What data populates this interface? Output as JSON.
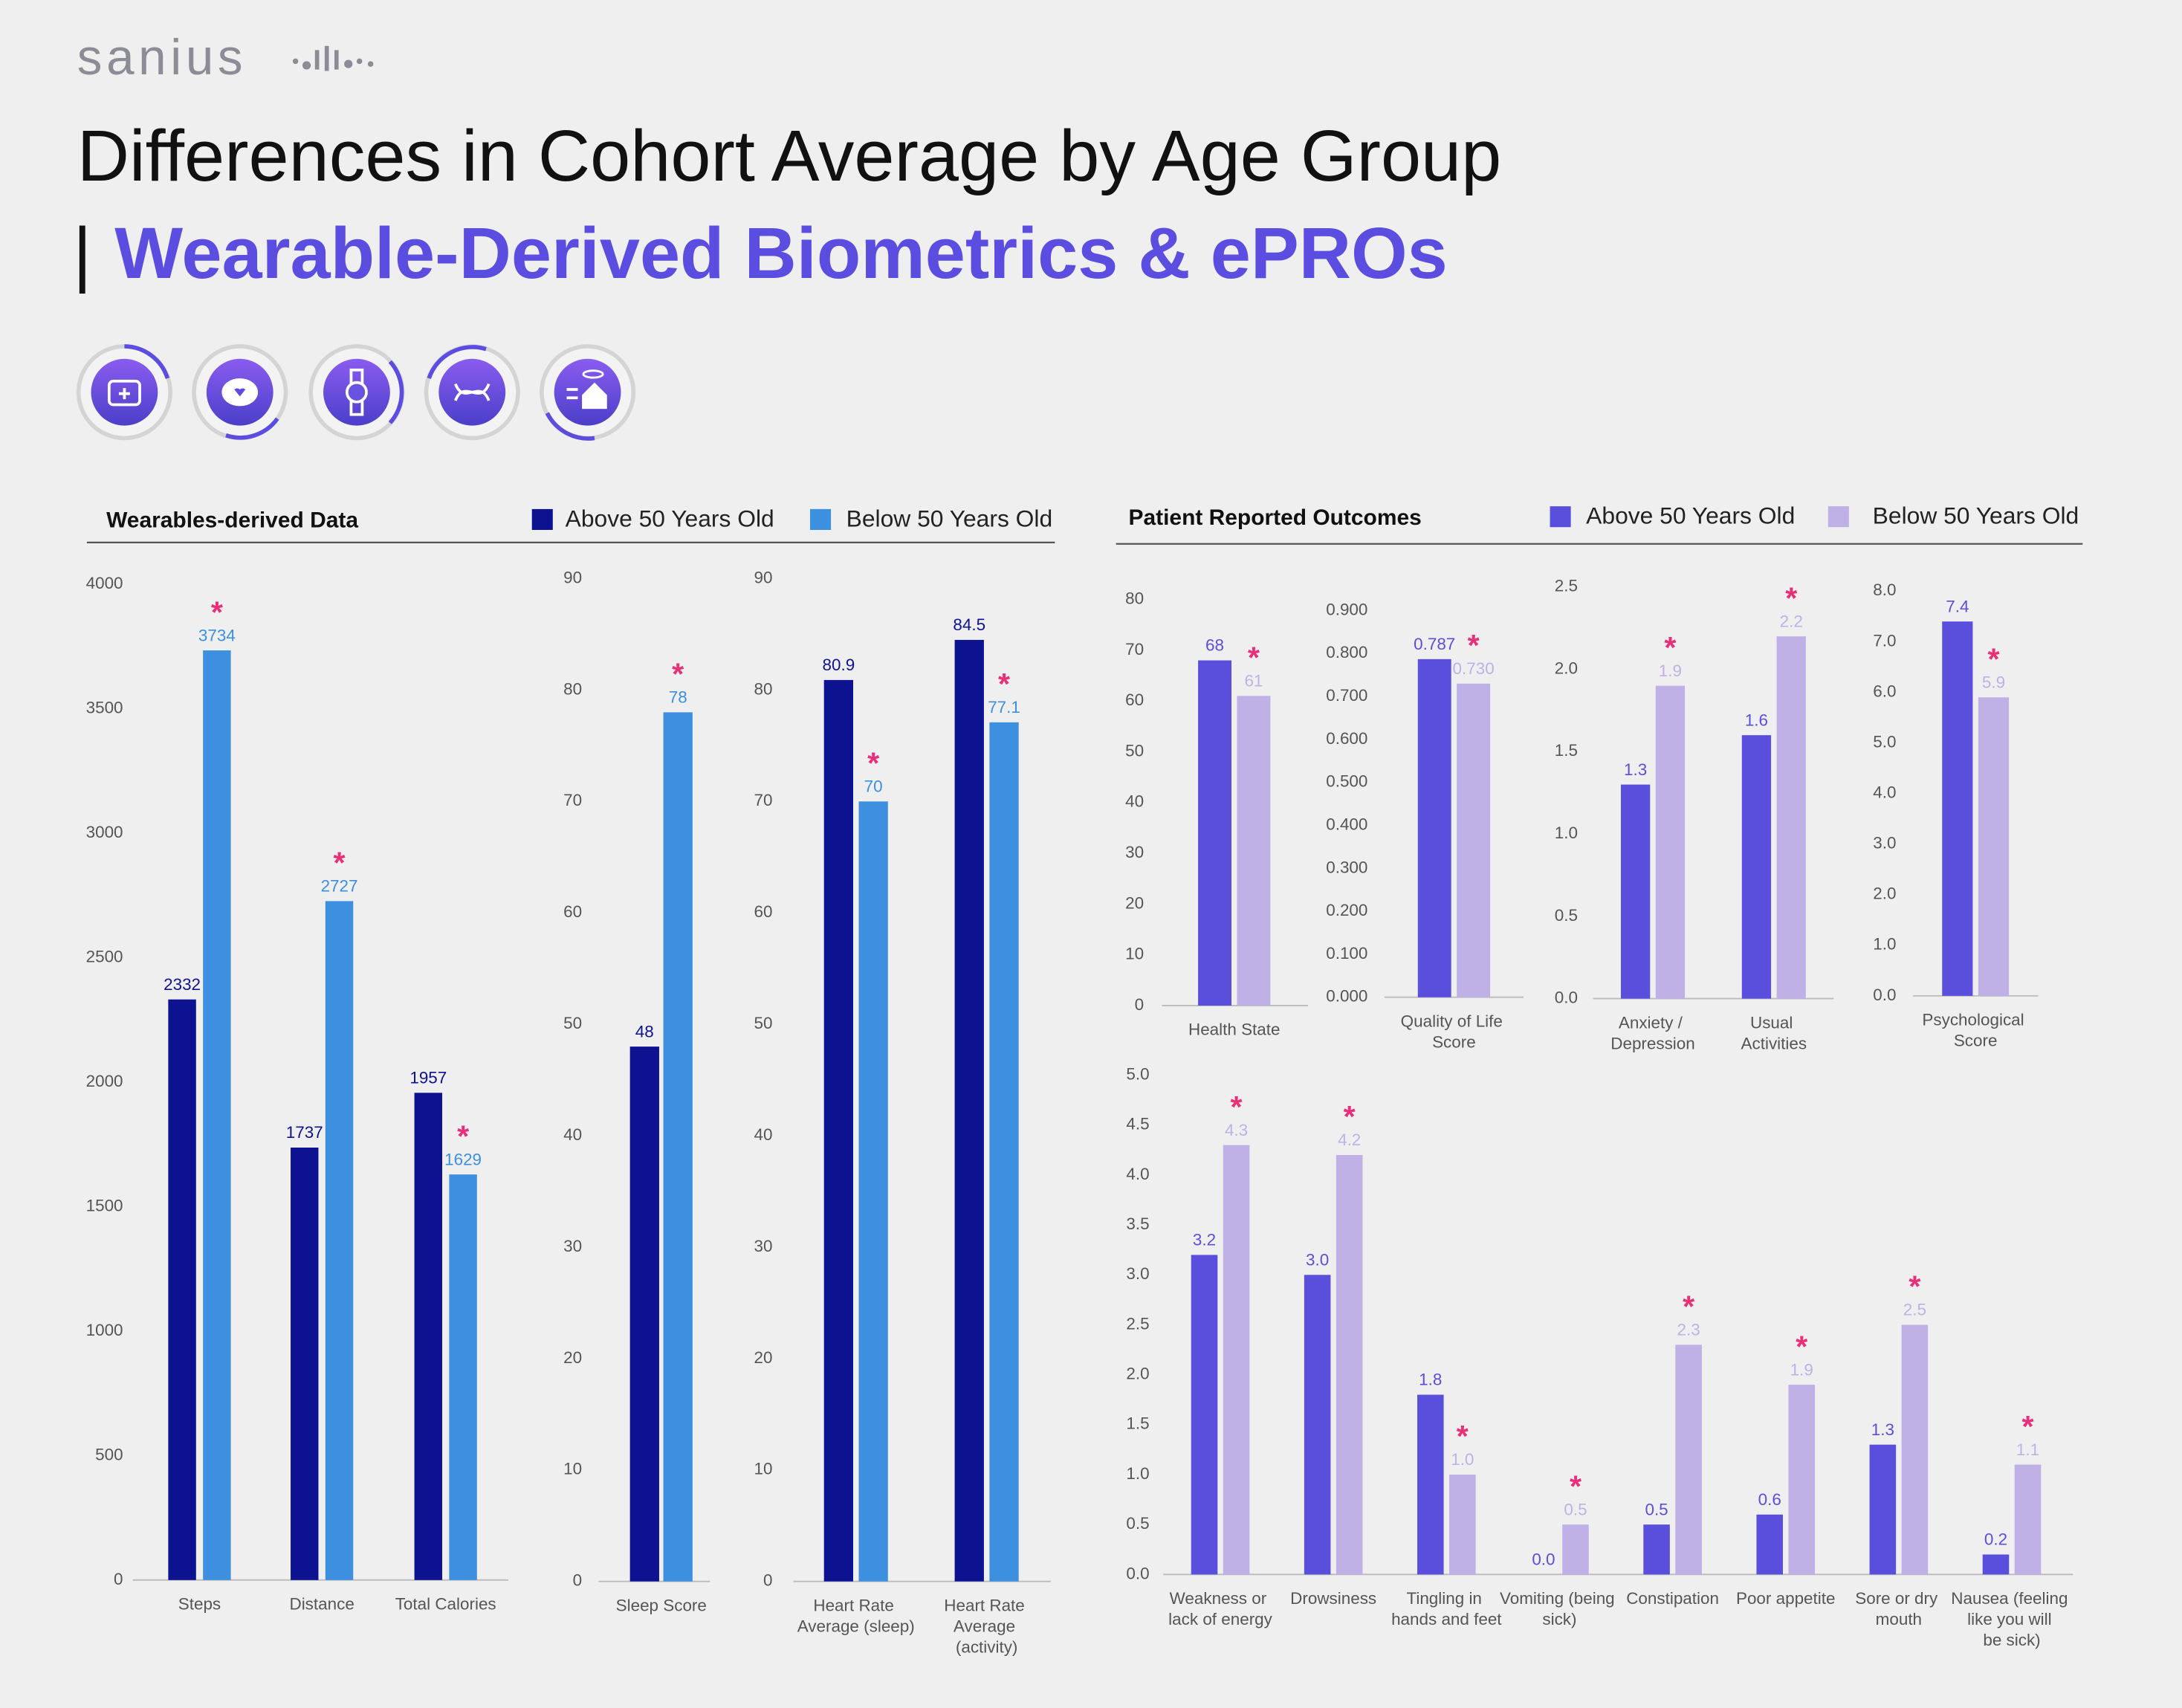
{
  "header": {
    "logo": "sanius",
    "title": "Differences in Cohort Average by Age Group",
    "separator": "|",
    "subtitle": "Wearable-Derived Biometrics & ePROs"
  },
  "chart_data": [
    {
      "type": "bar",
      "title": "Wearables-derived Data",
      "categories": [
        "Steps",
        "Distance",
        "Total Calories"
      ],
      "series": [
        {
          "name": "Above 50 Years Old",
          "color": "#0d1390",
          "values": [
            2332,
            1737,
            1957
          ]
        },
        {
          "name": "Below 50 Years Old",
          "color": "#3d8fe0",
          "values": [
            3734,
            2727,
            1629
          ]
        }
      ],
      "ylim": [
        0,
        4000
      ],
      "yticks": [
        0,
        500,
        1000,
        1500,
        2000,
        2500,
        3000,
        3500,
        4000
      ],
      "annotation": "*"
    },
    {
      "type": "bar",
      "categories": [
        "Sleep Score"
      ],
      "series": [
        {
          "color": "#0d1390",
          "values": [
            48
          ]
        },
        {
          "color": "#3d8fe0",
          "values": [
            78
          ]
        }
      ],
      "ylim": [
        0,
        90
      ],
      "yticks": [
        0,
        10,
        20,
        30,
        40,
        50,
        60,
        70,
        80,
        90
      ],
      "annotation": "*"
    },
    {
      "type": "bar",
      "categories": [
        "Heart Rate Average (sleep)",
        "Heart Rate Average (activity)"
      ],
      "series": [
        {
          "color": "#0d1390",
          "values": [
            80.9,
            84.5
          ]
        },
        {
          "color": "#3d8fe0",
          "values": [
            70,
            77.1
          ]
        }
      ],
      "ylim": [
        0,
        90
      ],
      "yticks": [
        0,
        10,
        20,
        30,
        40,
        50,
        60,
        70,
        80,
        90
      ],
      "annotation": "*"
    },
    {
      "type": "bar",
      "title": "Patient Reported Outcomes",
      "categories": [
        "Health State"
      ],
      "series": [
        {
          "name": "Above 50 Years Old",
          "color": "#5a4fdc",
          "values": [
            68
          ]
        },
        {
          "name": "Below 50 Years Old",
          "color": "#bfb0e6",
          "values": [
            61
          ]
        }
      ],
      "ylim": [
        0,
        80
      ],
      "yticks": [
        0,
        10,
        20,
        30,
        40,
        50,
        60,
        70,
        80
      ],
      "annotation": "*"
    },
    {
      "type": "bar",
      "categories": [
        "Quality of Life Score"
      ],
      "series": [
        {
          "color": "#5a4fdc",
          "values": [
            0.787
          ]
        },
        {
          "color": "#bfb0e6",
          "values": [
            0.73
          ],
          "value_labels": [
            "0.730"
          ]
        }
      ],
      "ylim": [
        0,
        0.9
      ],
      "yticks": [
        {
          "value": 0,
          "label": "0.000"
        },
        {
          "value": 0.1,
          "label": "0.100"
        },
        {
          "value": 0.2,
          "label": "0.200"
        },
        {
          "value": 0.3,
          "label": "0.300"
        },
        {
          "value": 0.4,
          "label": "0.400"
        },
        {
          "value": 0.5,
          "label": "0.500"
        },
        {
          "value": 0.6,
          "label": "0.600"
        },
        {
          "value": 0.7,
          "label": "0.700"
        },
        {
          "value": 0.8,
          "label": "0.800"
        },
        {
          "value": 0.9,
          "label": "0.900"
        }
      ],
      "annotation": "*"
    },
    {
      "type": "bar",
      "categories": [
        "Anxiety / Depression",
        "Usual Activities"
      ],
      "series": [
        {
          "color": "#5a4fdc",
          "values": [
            1.3,
            1.6
          ]
        },
        {
          "color": "#bfb0e6",
          "values": [
            1.9,
            2.2
          ]
        }
      ],
      "ylim": [
        0,
        2.5
      ],
      "yticks": [
        {
          "value": 0,
          "label": "0.0"
        },
        0.5,
        {
          "value": 1,
          "label": "1.0"
        },
        1.5,
        {
          "value": 2,
          "label": "2.0"
        },
        2.5
      ],
      "annotation": "*"
    },
    {
      "type": "bar",
      "categories": [
        "Psychological Score"
      ],
      "series": [
        {
          "color": "#5a4fdc",
          "values": [
            7.4
          ]
        },
        {
          "color": "#bfb0e6",
          "values": [
            5.9
          ]
        }
      ],
      "ylim": [
        0,
        8
      ],
      "yticks": [
        {
          "value": 0,
          "label": "0.0"
        },
        {
          "value": 1,
          "label": "1.0"
        },
        {
          "value": 2,
          "label": "2.0"
        },
        {
          "value": 3,
          "label": "3.0"
        },
        {
          "value": 4,
          "label": "4.0"
        },
        {
          "value": 5,
          "label": "5.0"
        },
        {
          "value": 6,
          "label": "6.0"
        },
        {
          "value": 7,
          "label": "7.0"
        },
        {
          "value": 8,
          "label": "8.0"
        }
      ],
      "annotation": "*"
    },
    {
      "type": "bar",
      "categories": [
        "Weakness or lack of energy",
        "Drowsiness",
        "Tingling in hands and feet",
        "Vomiting (being sick)",
        "Constipation",
        "Poor appetite",
        "Sore or dry mouth",
        "Nausea (feeling like you will be sick)"
      ],
      "series": [
        {
          "color": "#5a4fdc",
          "values": [
            3.2,
            3.0,
            1.8,
            0.0,
            0.5,
            0.6,
            1.3,
            0.2
          ],
          "value_labels": [
            "3.2",
            "3.0",
            "1.8",
            "0.0",
            "0.5",
            "0.6",
            "1.3",
            "0.2"
          ]
        },
        {
          "color": "#bfb0e6",
          "values": [
            4.3,
            4.2,
            1.0,
            0.5,
            2.3,
            1.9,
            2.5,
            1.1
          ],
          "value_labels": [
            "4.3",
            "4.2",
            "1.0",
            "0.5",
            "2.3",
            "1.9",
            "2.5",
            "1.1"
          ]
        }
      ],
      "ylim": [
        0,
        5
      ],
      "yticks": [
        {
          "value": 0,
          "label": "0.0"
        },
        0.5,
        {
          "value": 1,
          "label": "1.0"
        },
        1.5,
        {
          "value": 2,
          "label": "2.0"
        },
        2.5,
        {
          "value": 3,
          "label": "3.0"
        },
        3.5,
        {
          "value": 4,
          "label": "4.0"
        },
        4.5,
        {
          "value": 5,
          "label": "5.0"
        }
      ],
      "annotation": "*"
    }
  ]
}
